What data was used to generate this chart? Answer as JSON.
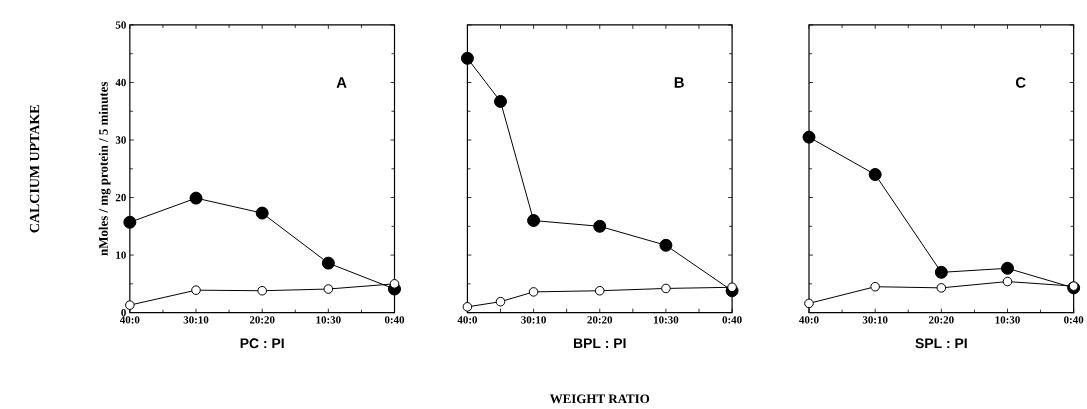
{
  "chart_data": [
    {
      "type": "line",
      "xlabel": "PC : PI",
      "ylabel": "nMoles / mg protein / 5 minutes",
      "annotations": [
        "A",
        "CALCIUM UPTAKE"
      ],
      "categories": [
        "40:0",
        "30:10",
        "20:20",
        "10:30",
        "0:40"
      ],
      "ylim": [
        0,
        50
      ],
      "marker": "circle",
      "yticks": [
        0,
        10,
        20,
        30,
        40,
        50
      ],
      "series": [
        {
          "color": "#000000",
          "values": [
            15.7,
            19.9,
            17.3,
            8.6,
            4.1
          ]
        },
        {
          "color": "#ffffff",
          "values": [
            1.3,
            3.9,
            3.8,
            4.1,
            5.0
          ]
        }
      ]
    },
    {
      "type": "line",
      "xlabel": "BPL : PI",
      "annotations": [
        "B",
        "WEIGHT RATIO"
      ],
      "categories": [
        "40:0",
        null,
        "30:10",
        null,
        "20:20",
        null,
        "10:30",
        null,
        "0:40"
      ],
      "ylim": [
        0,
        50
      ],
      "marker": "circle",
      "tick_labels": "x",
      "yticks": [
        0,
        10,
        20,
        30,
        40,
        50
      ],
      "series": [
        {
          "color": "#000000",
          "values": [
            44.2,
            36.7,
            16.0,
            null,
            15.0,
            null,
            11.7,
            null,
            3.8
          ]
        },
        {
          "color": "#ffffff",
          "values": [
            1.0,
            1.9,
            3.6,
            null,
            3.8,
            null,
            4.2,
            null,
            4.4
          ]
        }
      ]
    },
    {
      "type": "line",
      "xlabel": "SPL : PI",
      "annotations": [
        "C"
      ],
      "categories": [
        "40:0",
        "30:10",
        "20:20",
        "10:30",
        "0:40"
      ],
      "ylim": [
        0,
        50
      ],
      "marker": "circle",
      "tick_labels": "x",
      "yticks": [
        0,
        10,
        20,
        30,
        40,
        50
      ],
      "series": [
        {
          "color": "#000000",
          "values": [
            30.5,
            24.0,
            7.0,
            7.7,
            4.3
          ]
        },
        {
          "color": "#ffffff",
          "values": [
            1.6,
            4.5,
            4.3,
            5.4,
            4.6
          ]
        }
      ]
    }
  ]
}
